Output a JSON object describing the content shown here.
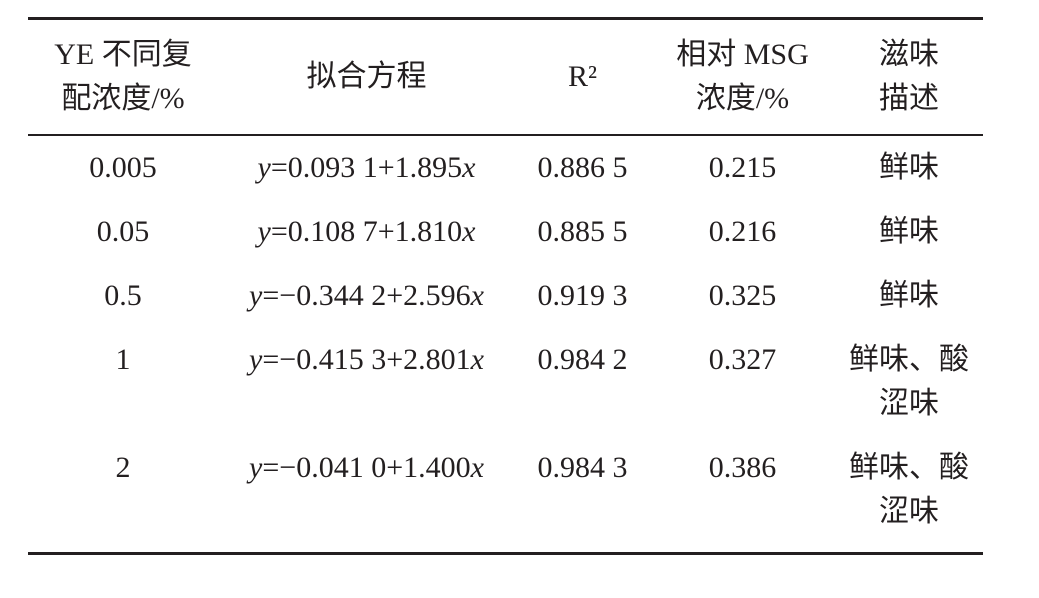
{
  "table": {
    "headers": [
      [
        "YE 不同复",
        "配浓度/%"
      ],
      [
        "拟合方程"
      ],
      [
        "R²"
      ],
      [
        "相对 MSG",
        "浓度/%"
      ],
      [
        "滋味",
        "描述"
      ]
    ],
    "rows": [
      [
        "0.005",
        "y=0.093 1+1.895x",
        "0.886 5",
        "0.215",
        "鲜味"
      ],
      [
        "0.05",
        "y=0.108 7+1.810x",
        "0.885 5",
        "0.216",
        "鲜味"
      ],
      [
        "0.5",
        "y=−0.344 2+2.596x",
        "0.919 3",
        "0.325",
        "鲜味"
      ],
      [
        "1",
        "y=−0.415 3+2.801x",
        "0.984 2",
        "0.327",
        "鲜味、酸涩味"
      ],
      [
        "2",
        "y=−0.041 0+1.400x",
        "0.984 3",
        "0.386",
        "鲜味、酸涩味"
      ]
    ]
  }
}
